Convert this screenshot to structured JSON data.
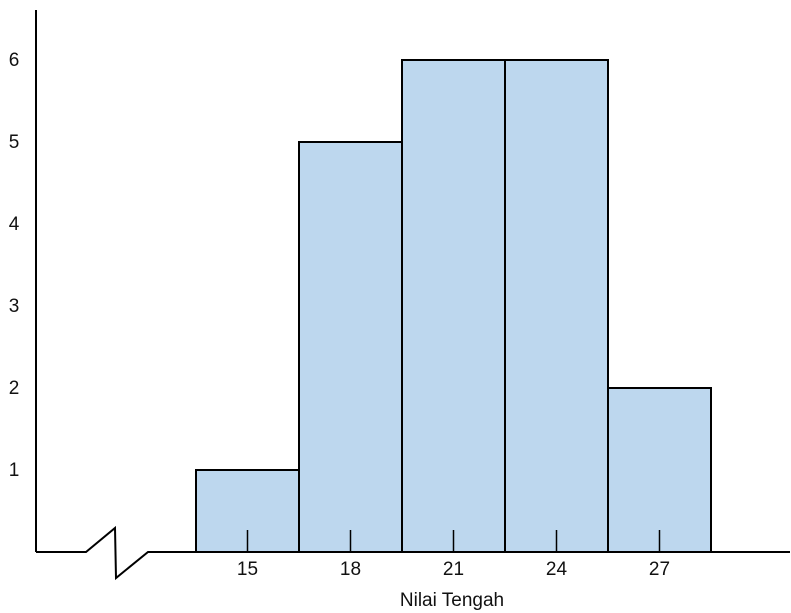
{
  "chart_data": {
    "type": "bar",
    "subtype": "histogram",
    "title": "",
    "xlabel": "Nilai Tengah",
    "ylabel": "",
    "categories": [
      "15",
      "18",
      "21",
      "24",
      "27"
    ],
    "values": [
      1,
      5,
      6,
      6,
      2
    ],
    "yticks": [
      "1",
      "2",
      "3",
      "4",
      "5",
      "6"
    ],
    "ylim": [
      0,
      6
    ],
    "axis_break_on_x": true,
    "grid": false,
    "bar_color": "#bdd7ee",
    "edge_color": "#000000"
  }
}
